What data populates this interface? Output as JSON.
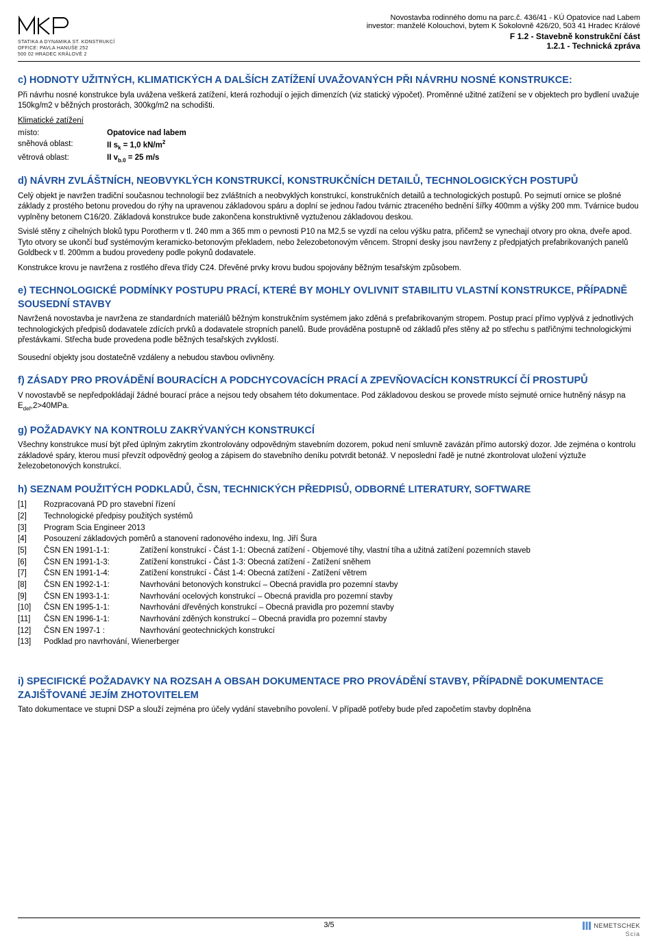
{
  "header": {
    "logo_text": "MKP",
    "logo_sub1": "STATIKA A DYNAMIKA ST. KONSTRUKCÍ",
    "logo_sub2": "OFFICE: PAVLA HANUŠE 252",
    "logo_sub3": "500 02 HRADEC KRÁLOVÉ 2",
    "line1": "Novostavba rodinného domu na parc.č. 436/41 - KÚ Opatovice nad Labem",
    "line2": "investor: manželé Kolouchovi, bytem K Sokolovně 426/20, 503 41 Hradec Králové",
    "line3": "F 1.2 - Stavebně konstrukční část",
    "line4": "1.2.1 - Technická zpráva"
  },
  "section_c": {
    "title": "c) HODNOTY UŽITNÝCH, KLIMATICKÝCH A DALŠÍCH ZATÍŽENÍ UVAŽOVANÝCH PŘI NÁVRHU NOSNÉ KONSTRUKCE:",
    "p1": "Při návrhu nosné konstrukce byla uvážena veškerá zatížení, která rozhodují o jejich dimenzích (viz statický výpočet). Proměnné užitné zatížení se v objektech pro bydlení uvažuje 150kg/m2 v běžných prostorách, 300kg/m2 na schodišti.",
    "klimat_label": "Klimatické zatížení",
    "misto_k": "místo:",
    "misto_v": "Opatovice nad labem",
    "sneh_k": "sněhová oblast:",
    "sneh_v_pre": "II s",
    "sneh_v_sub": "k",
    "sneh_v_post": " = 1,0 kN/m",
    "sneh_v_sup": "2",
    "vitr_k": "větrová oblast:",
    "vitr_v_pre": "II v",
    "vitr_v_sub": "b.0",
    "vitr_v_post": " = 25 m/s"
  },
  "section_d": {
    "title": "d) NÁVRH ZVLÁŠTNÍCH, NEOBVYKLÝCH KONSTRUKCÍ, KONSTRUKČNÍCH DETAILŮ, TECHNOLOGICKÝCH POSTUPŮ",
    "p1": "Celý objekt je navržen tradiční současnou technologií bez zvláštních a neobvyklých konstrukcí, konstrukčních detailů a technologických postupů. Po sejmutí ornice se plošné základy z prostého betonu provedou do rýhy na upravenou základovou spáru a doplní se jednou řadou tvárnic ztraceného bednění šířky 400mm a výšky 200 mm. Tvárnice budou vyplněny betonem C16/20. Základová konstrukce bude zakončena konstruktivně vyztuženou základovou deskou.",
    "p2": "Svislé stěny z cihelných bloků typu Porotherm v tl. 240 mm a 365 mm o pevnosti P10 na M2,5 se vyzdí na celou výšku patra, přičemž se vynechají otvory pro okna, dveře apod. Tyto otvory se ukončí buď systémovým keramicko-betonovým překladem, nebo železobetonovým věncem. Stropní desky jsou navrženy z předpjatých prefabrikovaných panelů Goldbeck v tl. 200mm a budou provedeny podle pokynů dodavatele.",
    "p3": "Konstrukce krovu je navržena z rostlého dřeva třídy C24. Dřevěné prvky krovu budou spojovány běžným tesařským způsobem."
  },
  "section_e": {
    "title": "e) TECHNOLOGICKÉ PODMÍNKY POSTUPU PRACÍ, KTERÉ BY MOHLY OVLIVNIT STABILITU VLASTNÍ KONSTRUKCE, PŘÍPADNĚ SOUSEDNÍ STAVBY",
    "p1": "Navržená novostavba je navržena ze standardních materiálů běžným konstrukčním systémem jako zděná s prefabrikovaným stropem. Postup prací přímo vyplývá z jednotlivých technologických předpisů dodavatele zdících prvků a dodavatele stropních panelů. Bude prováděna postupně od základů přes stěny až po střechu s patřičnými technologickými přestávkami. Střecha bude provedena podle běžných tesařských zvyklostí.",
    "p2": "Sousední objekty jsou dostatečně vzdáleny a nebudou stavbou ovlivněny."
  },
  "section_f": {
    "title": "f) ZÁSADY PRO PROVÁDĚNÍ BOURACÍCH A PODCHYCOVACÍCH PRACÍ A ZPEVŇOVACÍCH KONSTRUKCÍ ČÍ PROSTUPŮ",
    "p1_pre": "V novostavbě se nepředpokládají žádné bourací práce a nejsou tedy obsahem této dokumentace. Pod základovou deskou se provede místo sejmuté ornice hutněný násyp na E",
    "p1_sub": "def",
    "p1_post": ",2>40MPa."
  },
  "section_g": {
    "title": "g) POŽADAVKY NA KONTROLU ZAKRÝVANÝCH KONSTRUKCÍ",
    "p1": "Všechny konstrukce musí být před úplným zakrytím zkontrolovány odpovědným stavebním dozorem, pokud není smluvně zavázán přímo autorský dozor. Jde zejména o kontrolu základové spáry, kterou musí převzít odpovědný geolog a zápisem do stavebního deníku potvrdit betonáž. V neposlední řadě je nutné zkontrolovat uložení výztuže železobetonových konstrukcí."
  },
  "section_h": {
    "title": "h) SEZNAM POUŽITÝCH PODKLADŮ, ČSN, TECHNICKÝCH PŘEDPISŮ, ODBORNÉ LITERATURY, SOFTWARE",
    "refs": [
      {
        "num": "[1]",
        "text": "Rozpracovaná PD pro stavební řízení"
      },
      {
        "num": "[2]",
        "text": "Technologické předpisy použitých systémů"
      },
      {
        "num": "[3]",
        "text": "Program Scia Engineer 2013"
      },
      {
        "num": "[4]",
        "text": "Posouzení základových poměrů a stanovení radonového indexu, Ing. Jiří Šura"
      },
      {
        "num": "[5]",
        "code": "ČSN EN 1991-1-1:",
        "text": "Zatížení konstrukcí - Část 1-1: Obecná zatížení - Objemové tíhy, vlastní tíha a užitná zatížení pozemních staveb"
      },
      {
        "num": "[6]",
        "code": "ČSN EN 1991-1-3:",
        "text": "Zatížení konstrukcí - Část 1-3: Obecná zatížení - Zatížení sněhem"
      },
      {
        "num": "[7]",
        "code": "ČSN EN 1991-1-4:",
        "text": "Zatížení konstrukcí - Část 1-4: Obecná zatížení - Zatížení větrem"
      },
      {
        "num": "[8]",
        "code": "ČSN EN 1992-1-1:",
        "text": "Navrhování betonových konstrukcí – Obecná pravidla pro pozemní stavby"
      },
      {
        "num": "[9]",
        "code": "ČSN EN 1993-1-1:",
        "text": "Navrhování ocelových konstrukcí – Obecná pravidla pro pozemní stavby"
      },
      {
        "num": "[10]",
        "code": "ČSN EN 1995-1-1:",
        "text": "Navrhování dřevěných konstrukcí – Obecná pravidla pro pozemní stavby"
      },
      {
        "num": "[11]",
        "code": "ČSN EN 1996-1-1:",
        "text": "Navrhování zděných konstrukcí – Obecná pravidla pro pozemní stavby"
      },
      {
        "num": "[12]",
        "code": "ČSN EN 1997-1    :",
        "text": "Navrhování geotechnických konstrukcí"
      },
      {
        "num": "[13]",
        "text": "Podklad pro navrhování, Wienerberger"
      }
    ]
  },
  "section_i": {
    "title": "i) SPECIFICKÉ POŽADAVKY NA ROZSAH A OBSAH DOKUMENTACE PRO PROVÁDĚNÍ STAVBY, PŘÍPADNĚ DOKUMENTACE ZAJIŠŤOVANÉ JEJÍM ZHOTOVITELEM",
    "p1": "Tato dokumentace ve stupni DSP a slouží zejména pro účely vydání stavebního povolení. V případě potřeby bude před započetím stavby doplněna"
  },
  "footer": {
    "page": "3/5",
    "brand": "NEMETSCHEK",
    "sub": "Scia"
  }
}
